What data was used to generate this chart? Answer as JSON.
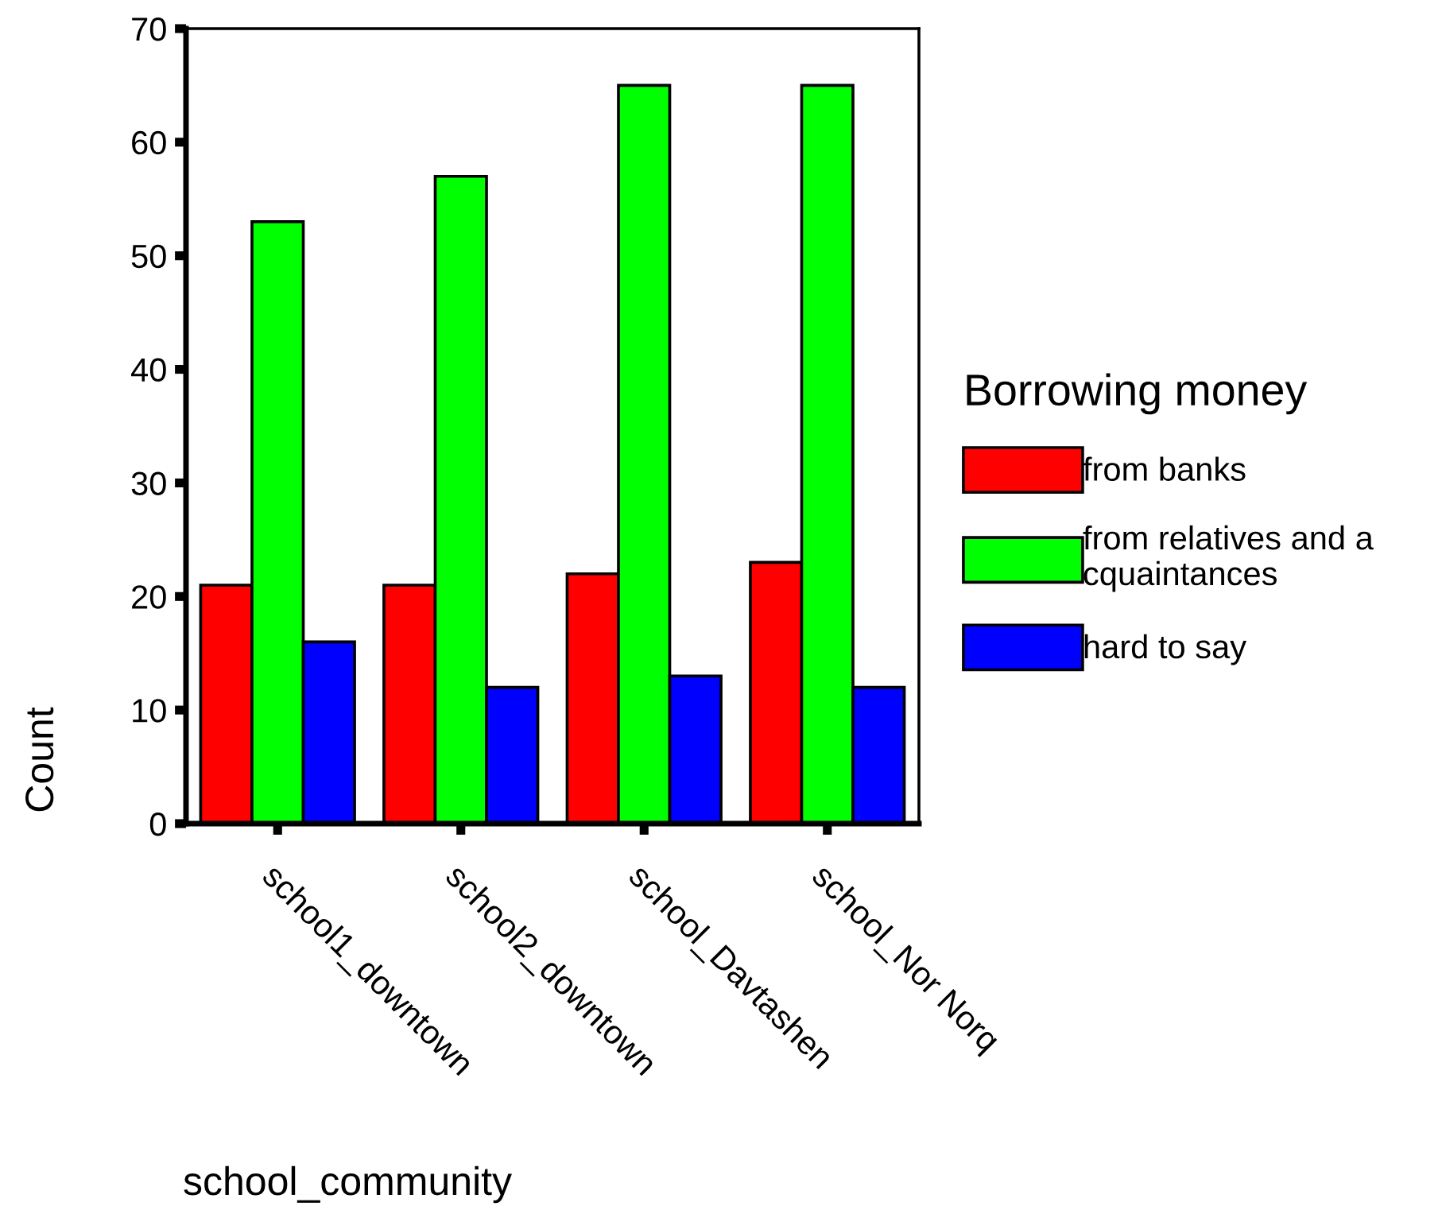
{
  "chart_data": {
    "type": "bar",
    "categories": [
      "school1_downtown",
      "school2_downtown",
      "school_Davtashen",
      "school_Nor Norq"
    ],
    "series": [
      {
        "name": "from banks",
        "color": "#ff0000",
        "values": [
          21,
          21,
          22,
          23
        ]
      },
      {
        "name": "from relatives and a\ncquaintances",
        "color": "#00ff00",
        "values": [
          53,
          57,
          65,
          65
        ]
      },
      {
        "name": "hard to say",
        "color": "#0000ff",
        "values": [
          16,
          12,
          13,
          12
        ]
      }
    ],
    "xlabel": "school_community",
    "ylabel": "Count",
    "legend_title": "Borrowing money",
    "ylim": [
      0,
      70
    ],
    "yticks": [
      0,
      10,
      20,
      30,
      40,
      50,
      60,
      70
    ],
    "grid": false,
    "legend": "right"
  }
}
